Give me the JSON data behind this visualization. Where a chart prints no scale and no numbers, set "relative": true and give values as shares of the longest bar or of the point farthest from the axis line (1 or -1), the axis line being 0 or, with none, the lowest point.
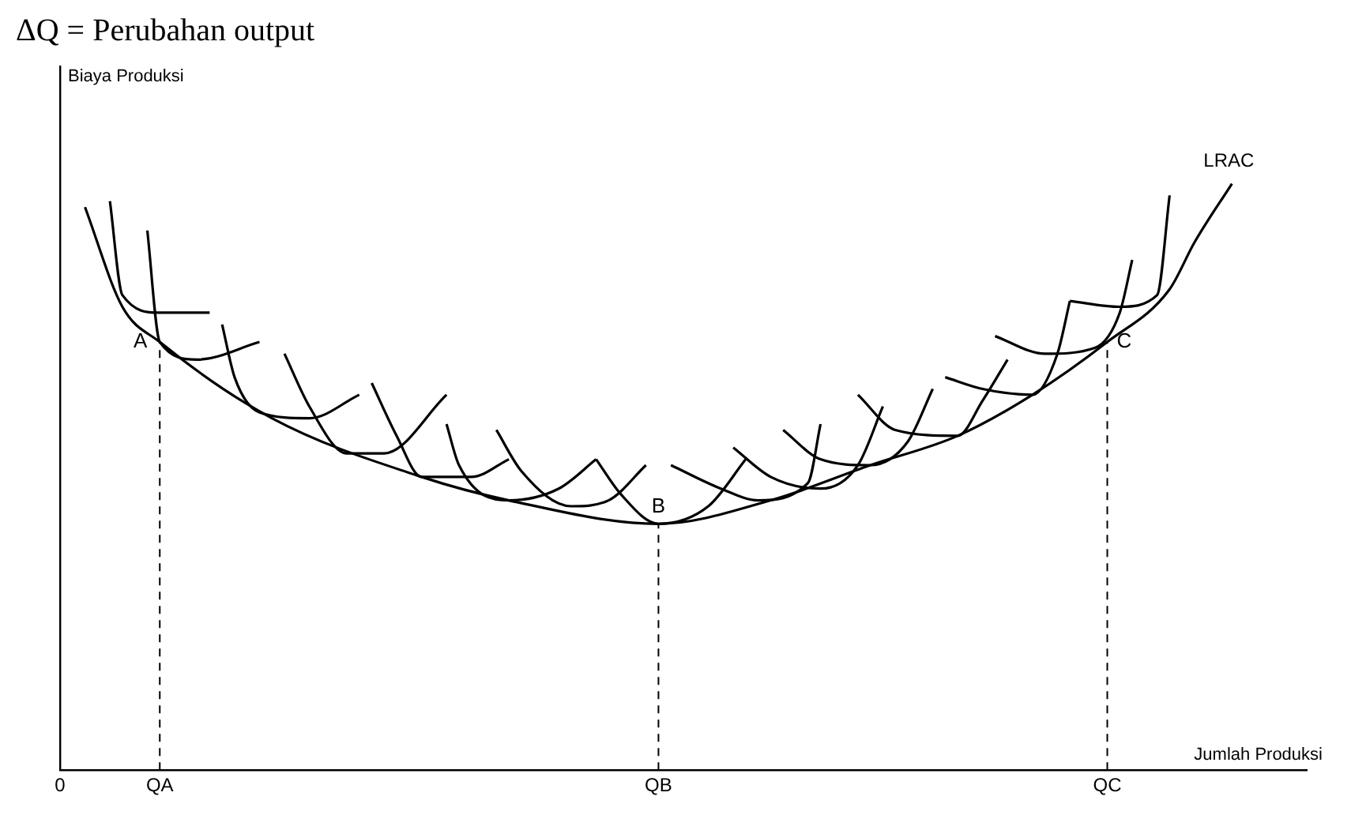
{
  "chart_data": {
    "type": "line",
    "relative": true,
    "xlabel": "Jumlah Produksi",
    "categories": [
      "0",
      null,
      null,
      null,
      null,
      null,
      null,
      null,
      "QA",
      null,
      null,
      null,
      null,
      null,
      null,
      null,
      null,
      null,
      null,
      null,
      null,
      null,
      null,
      null,
      null,
      null,
      null,
      null,
      null,
      null,
      null,
      null,
      null,
      null,
      null,
      null,
      null,
      null,
      null,
      null,
      null,
      null,
      null,
      null,
      null,
      null,
      null,
      null,
      "QB",
      null,
      null,
      null,
      null,
      null,
      null,
      null,
      null,
      null,
      null,
      null,
      null,
      null,
      null,
      null,
      null,
      null,
      null,
      null,
      null,
      null,
      null,
      null,
      null,
      null,
      null,
      null,
      null,
      null,
      null,
      null,
      null,
      null,
      null,
      null,
      "QC",
      null,
      null,
      null,
      null,
      null,
      null,
      null,
      null,
      null,
      null,
      null,
      null,
      null,
      null,
      null,
      null
    ],
    "grid": false,
    "legend": false,
    "marker": "none",
    "line_style": "solid",
    "annotations": [
      "ΔQ = Perubahan output",
      "Biaya Produksi",
      {
        "text": "A",
        "x": "QA",
        "y": 0.73
      },
      {
        "text": "B",
        "x": "QB",
        "y": 0.42
      },
      {
        "text": "C",
        "x": "QC",
        "y": 0.73
      }
    ],
    "ref_lines": [
      {
        "axis": "x",
        "value": "QA",
        "color": "#000000",
        "line_style": "dashed"
      },
      {
        "axis": "x",
        "value": "QB",
        "color": "#000000",
        "line_style": "dashed"
      },
      {
        "axis": "x",
        "value": "QC",
        "color": "#000000",
        "line_style": "dashed"
      }
    ],
    "series": [
      {
        "name": "LRAC",
        "color": "#000000",
        "values": [
          null,
          null,
          0.96,
          null,
          null,
          0.79,
          null,
          null,
          0.73,
          null,
          null,
          null,
          null,
          null,
          null,
          null,
          null,
          0.6,
          null,
          null,
          null,
          null,
          null,
          null,
          null,
          null,
          null,
          null,
          null,
          0.5,
          null,
          null,
          null,
          null,
          null,
          null,
          0.46,
          null,
          null,
          null,
          null,
          null,
          null,
          null,
          null,
          null,
          null,
          null,
          0.42,
          null,
          null,
          null,
          null,
          null,
          null,
          null,
          null,
          0.46,
          null,
          null,
          null,
          null,
          null,
          null,
          null,
          0.52,
          null,
          null,
          null,
          null,
          null,
          null,
          0.57,
          null,
          null,
          null,
          null,
          null,
          0.64,
          null,
          null,
          null,
          null,
          null,
          0.73,
          null,
          null,
          null,
          null,
          0.82,
          null,
          0.9,
          null,
          null,
          1.0,
          null,
          null,
          null,
          null,
          null,
          null
        ]
      },
      {
        "color": "#000000",
        "values": [
          null,
          null,
          null,
          null,
          0.97,
          0.81,
          null,
          null,
          0.78,
          null,
          null,
          null,
          0.78,
          null,
          null,
          null,
          null,
          null,
          null,
          null,
          null,
          null,
          null,
          null,
          null,
          null,
          null,
          null,
          null,
          null,
          null,
          null,
          null,
          null,
          null,
          null,
          null,
          null,
          null,
          null,
          null,
          null,
          null,
          null,
          null,
          null,
          null,
          null,
          null,
          null,
          null,
          null,
          null,
          null,
          null,
          null,
          null,
          null,
          null,
          null,
          null,
          null,
          null,
          null,
          null,
          null,
          null,
          null,
          null,
          null,
          null,
          null,
          null,
          null,
          null,
          null,
          null,
          null,
          null,
          null,
          null,
          null,
          null,
          null,
          null,
          null,
          null,
          null,
          null,
          null,
          null,
          null,
          null,
          null,
          null,
          null,
          null,
          null,
          null,
          null,
          null
        ]
      },
      {
        "color": "#000000",
        "values": [
          null,
          null,
          null,
          null,
          null,
          null,
          null,
          0.92,
          0.73,
          null,
          null,
          0.7,
          null,
          null,
          null,
          null,
          0.73,
          null,
          null,
          null,
          null,
          null,
          null,
          null,
          null,
          null,
          null,
          null,
          null,
          null,
          null,
          null,
          null,
          null,
          null,
          null,
          null,
          null,
          null,
          null,
          null,
          null,
          null,
          null,
          null,
          null,
          null,
          null,
          null,
          null,
          null,
          null,
          null,
          null,
          null,
          null,
          null,
          null,
          null,
          null,
          null,
          null,
          null,
          null,
          null,
          null,
          null,
          null,
          null,
          null,
          null,
          null,
          null,
          null,
          null,
          null,
          null,
          null,
          null,
          null,
          null,
          null,
          null,
          null,
          null,
          null,
          null,
          null,
          null,
          null,
          null,
          null,
          null,
          null,
          null,
          null,
          null,
          null,
          null,
          null,
          null
        ]
      },
      {
        "color": "#000000",
        "values": [
          null,
          null,
          null,
          null,
          null,
          null,
          null,
          null,
          null,
          null,
          null,
          null,
          null,
          0.76,
          0.67,
          null,
          0.61,
          null,
          null,
          null,
          0.6,
          null,
          null,
          null,
          0.64,
          null,
          null,
          null,
          null,
          null,
          null,
          null,
          null,
          null,
          null,
          null,
          null,
          null,
          null,
          null,
          null,
          null,
          null,
          null,
          null,
          null,
          null,
          null,
          null,
          null,
          null,
          null,
          null,
          null,
          null,
          null,
          null,
          null,
          null,
          null,
          null,
          null,
          null,
          null,
          null,
          null,
          null,
          null,
          null,
          null,
          null,
          null,
          null,
          null,
          null,
          null,
          null,
          null,
          null,
          null,
          null,
          null,
          null,
          null,
          null,
          null,
          null,
          null,
          null,
          null,
          null,
          null,
          null,
          null,
          null,
          null,
          null,
          null,
          null,
          null,
          null
        ]
      },
      {
        "color": "#000000",
        "values": [
          null,
          null,
          null,
          null,
          null,
          null,
          null,
          null,
          null,
          null,
          null,
          null,
          null,
          null,
          null,
          null,
          null,
          null,
          0.71,
          null,
          0.62,
          null,
          null,
          0.54,
          null,
          null,
          0.54,
          null,
          null,
          null,
          null,
          0.64,
          null,
          null,
          null,
          null,
          null,
          null,
          null,
          null,
          null,
          null,
          null,
          null,
          null,
          null,
          null,
          null,
          null,
          null,
          null,
          null,
          null,
          null,
          null,
          null,
          null,
          null,
          null,
          null,
          null,
          null,
          null,
          null,
          null,
          null,
          null,
          null,
          null,
          null,
          null,
          null,
          null,
          null,
          null,
          null,
          null,
          null,
          null,
          null,
          null,
          null,
          null,
          null,
          null,
          null,
          null,
          null,
          null,
          null,
          null,
          null,
          null,
          null,
          null,
          null,
          null,
          null,
          null,
          null,
          null
        ]
      },
      {
        "color": "#000000",
        "values": [
          null,
          null,
          null,
          null,
          null,
          null,
          null,
          null,
          null,
          null,
          null,
          null,
          null,
          null,
          null,
          null,
          null,
          null,
          null,
          null,
          null,
          null,
          null,
          null,
          null,
          0.66,
          null,
          0.57,
          null,
          0.5,
          null,
          null,
          null,
          0.5,
          null,
          null,
          0.53,
          null,
          null,
          null,
          null,
          null,
          null,
          null,
          null,
          null,
          null,
          null,
          null,
          null,
          null,
          null,
          null,
          null,
          null,
          null,
          null,
          null,
          null,
          null,
          null,
          null,
          null,
          null,
          null,
          null,
          null,
          null,
          null,
          null,
          null,
          null,
          null,
          null,
          null,
          null,
          null,
          null,
          null,
          null,
          null,
          null,
          null,
          null,
          null,
          null,
          null,
          null,
          null,
          null,
          null,
          null,
          null,
          null,
          null,
          null,
          null,
          null,
          null,
          null,
          null
        ]
      },
      {
        "color": "#000000",
        "values": [
          null,
          null,
          null,
          null,
          null,
          null,
          null,
          null,
          null,
          null,
          null,
          null,
          null,
          null,
          null,
          null,
          null,
          null,
          null,
          null,
          null,
          null,
          null,
          null,
          null,
          null,
          null,
          null,
          null,
          null,
          null,
          0.59,
          0.52,
          null,
          null,
          null,
          0.46,
          null,
          null,
          null,
          0.48,
          null,
          null,
          0.53,
          null,
          null,
          null,
          null,
          null,
          null,
          null,
          null,
          null,
          null,
          null,
          null,
          null,
          null,
          null,
          null,
          null,
          null,
          null,
          null,
          null,
          null,
          null,
          null,
          null,
          null,
          null,
          null,
          null,
          null,
          null,
          null,
          null,
          null,
          null,
          null,
          null,
          null,
          null,
          null,
          null,
          null,
          null,
          null,
          null,
          null,
          null,
          null,
          null,
          null,
          null,
          null,
          null,
          null,
          null,
          null,
          null
        ]
      },
      {
        "color": "#000000",
        "values": [
          null,
          null,
          null,
          null,
          null,
          null,
          null,
          null,
          null,
          null,
          null,
          null,
          null,
          null,
          null,
          null,
          null,
          null,
          null,
          null,
          null,
          null,
          null,
          null,
          null,
          null,
          null,
          null,
          null,
          null,
          null,
          null,
          null,
          null,
          null,
          0.58,
          null,
          0.51,
          null,
          null,
          null,
          0.45,
          null,
          null,
          0.46,
          null,
          null,
          0.52,
          null,
          null,
          null,
          null,
          null,
          null,
          null,
          null,
          null,
          null,
          null,
          null,
          null,
          null,
          null,
          null,
          null,
          null,
          null,
          null,
          null,
          null,
          null,
          null,
          null,
          null,
          null,
          null,
          null,
          null,
          null,
          null,
          null,
          null,
          null,
          null,
          null,
          null,
          null,
          null,
          null,
          null,
          null,
          null,
          null,
          null,
          null,
          null,
          null,
          null,
          null,
          null,
          null
        ]
      },
      {
        "color": "#000000",
        "values": [
          null,
          null,
          null,
          null,
          null,
          null,
          null,
          null,
          null,
          null,
          null,
          null,
          null,
          null,
          null,
          null,
          null,
          null,
          null,
          null,
          null,
          null,
          null,
          null,
          null,
          null,
          null,
          null,
          null,
          null,
          null,
          null,
          null,
          null,
          null,
          null,
          null,
          null,
          null,
          null,
          null,
          null,
          null,
          0.53,
          null,
          0.47,
          null,
          null,
          0.42,
          null,
          null,
          null,
          0.45,
          null,
          null,
          0.53,
          null,
          null,
          null,
          null,
          null,
          null,
          null,
          null,
          null,
          null,
          null,
          null,
          null,
          null,
          null,
          null,
          null,
          null,
          null,
          null,
          null,
          null,
          null,
          null,
          null,
          null,
          null,
          null,
          null,
          null,
          null,
          null,
          null,
          null,
          null,
          null,
          null,
          null,
          null,
          null,
          null,
          null,
          null,
          null,
          null
        ]
      },
      {
        "color": "#000000",
        "values": [
          null,
          null,
          null,
          null,
          null,
          null,
          null,
          null,
          null,
          null,
          null,
          null,
          null,
          null,
          null,
          null,
          null,
          null,
          null,
          null,
          null,
          null,
          null,
          null,
          null,
          null,
          null,
          null,
          null,
          null,
          null,
          null,
          null,
          null,
          null,
          null,
          null,
          null,
          null,
          null,
          null,
          null,
          null,
          null,
          null,
          null,
          null,
          null,
          null,
          0.52,
          null,
          null,
          null,
          0.48,
          null,
          null,
          0.46,
          null,
          null,
          null,
          0.49,
          0.59,
          null,
          null,
          null,
          null,
          null,
          null,
          null,
          null,
          null,
          null,
          null,
          null,
          null,
          null,
          null,
          null,
          null,
          null,
          null,
          null,
          null,
          null,
          null,
          null,
          null,
          null,
          null,
          null,
          null,
          null,
          null,
          null,
          null,
          null,
          null,
          null,
          null,
          null,
          null
        ]
      },
      {
        "color": "#000000",
        "values": [
          null,
          null,
          null,
          null,
          null,
          null,
          null,
          null,
          null,
          null,
          null,
          null,
          null,
          null,
          null,
          null,
          null,
          null,
          null,
          null,
          null,
          null,
          null,
          null,
          null,
          null,
          null,
          null,
          null,
          null,
          null,
          null,
          null,
          null,
          null,
          null,
          null,
          null,
          null,
          null,
          null,
          null,
          null,
          null,
          null,
          null,
          null,
          null,
          null,
          null,
          null,
          null,
          null,
          null,
          0.55,
          null,
          null,
          0.5,
          null,
          null,
          null,
          0.48,
          null,
          null,
          0.52,
          null,
          0.62,
          null,
          null,
          null,
          null,
          null,
          null,
          null,
          null,
          null,
          null,
          null,
          null,
          null,
          null,
          null,
          null,
          null,
          null,
          null,
          null,
          null,
          null,
          null,
          null,
          null,
          null,
          null,
          null,
          null,
          null,
          null,
          null,
          null,
          null
        ]
      },
      {
        "color": "#000000",
        "values": [
          null,
          null,
          null,
          null,
          null,
          null,
          null,
          null,
          null,
          null,
          null,
          null,
          null,
          null,
          null,
          null,
          null,
          null,
          null,
          null,
          null,
          null,
          null,
          null,
          null,
          null,
          null,
          null,
          null,
          null,
          null,
          null,
          null,
          null,
          null,
          null,
          null,
          null,
          null,
          null,
          null,
          null,
          null,
          null,
          null,
          null,
          null,
          null,
          null,
          null,
          null,
          null,
          null,
          null,
          null,
          null,
          null,
          null,
          0.58,
          null,
          null,
          0.53,
          null,
          null,
          null,
          0.52,
          null,
          null,
          0.56,
          null,
          0.65,
          null,
          null,
          null,
          null,
          null,
          null,
          null,
          null,
          null,
          null,
          null,
          null,
          null,
          null,
          null,
          null,
          null,
          null,
          null,
          null,
          null,
          null,
          null,
          null,
          null,
          null,
          null,
          null,
          null,
          null
        ]
      },
      {
        "color": "#000000",
        "values": [
          null,
          null,
          null,
          null,
          null,
          null,
          null,
          null,
          null,
          null,
          null,
          null,
          null,
          null,
          null,
          null,
          null,
          null,
          null,
          null,
          null,
          null,
          null,
          null,
          null,
          null,
          null,
          null,
          null,
          null,
          null,
          null,
          null,
          null,
          null,
          null,
          null,
          null,
          null,
          null,
          null,
          null,
          null,
          null,
          null,
          null,
          null,
          null,
          null,
          null,
          null,
          null,
          null,
          null,
          null,
          null,
          null,
          null,
          null,
          null,
          null,
          null,
          null,
          null,
          0.64,
          null,
          null,
          0.58,
          null,
          null,
          null,
          null,
          0.57,
          null,
          0.63,
          null,
          0.7,
          null,
          null,
          null,
          null,
          null,
          null,
          null,
          null,
          null,
          null,
          null,
          null,
          null,
          null,
          null,
          null,
          null,
          null,
          null,
          null,
          null,
          null,
          null,
          null
        ]
      },
      {
        "color": "#000000",
        "values": [
          null,
          null,
          null,
          null,
          null,
          null,
          null,
          null,
          null,
          null,
          null,
          null,
          null,
          null,
          null,
          null,
          null,
          null,
          null,
          null,
          null,
          null,
          null,
          null,
          null,
          null,
          null,
          null,
          null,
          null,
          null,
          null,
          null,
          null,
          null,
          null,
          null,
          null,
          null,
          null,
          null,
          null,
          null,
          null,
          null,
          null,
          null,
          null,
          null,
          null,
          null,
          null,
          null,
          null,
          null,
          null,
          null,
          null,
          null,
          null,
          null,
          null,
          null,
          null,
          null,
          null,
          null,
          null,
          null,
          null,
          null,
          0.67,
          null,
          null,
          0.65,
          null,
          null,
          null,
          0.64,
          null,
          0.71,
          0.8,
          null,
          null,
          null,
          null,
          null,
          null,
          null,
          null,
          null,
          null,
          null,
          null,
          null,
          null,
          null,
          null,
          null,
          null,
          null
        ]
      },
      {
        "color": "#000000",
        "values": [
          null,
          null,
          null,
          null,
          null,
          null,
          null,
          null,
          null,
          null,
          null,
          null,
          null,
          null,
          null,
          null,
          null,
          null,
          null,
          null,
          null,
          null,
          null,
          null,
          null,
          null,
          null,
          null,
          null,
          null,
          null,
          null,
          null,
          null,
          null,
          null,
          null,
          null,
          null,
          null,
          null,
          null,
          null,
          null,
          null,
          null,
          null,
          null,
          null,
          null,
          null,
          null,
          null,
          null,
          null,
          null,
          null,
          null,
          null,
          null,
          null,
          null,
          null,
          null,
          null,
          null,
          null,
          null,
          null,
          null,
          null,
          null,
          null,
          null,
          null,
          0.74,
          null,
          null,
          null,
          0.71,
          null,
          null,
          null,
          0.72,
          null,
          0.78,
          0.87,
          null,
          null,
          null,
          null,
          null,
          null,
          null,
          null,
          null,
          null,
          null,
          null,
          null,
          null
        ]
      },
      {
        "color": "#000000",
        "values": [
          null,
          null,
          null,
          null,
          null,
          null,
          null,
          null,
          null,
          null,
          null,
          null,
          null,
          null,
          null,
          null,
          null,
          null,
          null,
          null,
          null,
          null,
          null,
          null,
          null,
          null,
          null,
          null,
          null,
          null,
          null,
          null,
          null,
          null,
          null,
          null,
          null,
          null,
          null,
          null,
          null,
          null,
          null,
          null,
          null,
          null,
          null,
          null,
          null,
          null,
          null,
          null,
          null,
          null,
          null,
          null,
          null,
          null,
          null,
          null,
          null,
          null,
          null,
          null,
          null,
          null,
          null,
          null,
          null,
          null,
          null,
          null,
          null,
          null,
          null,
          null,
          null,
          null,
          null,
          null,
          null,
          0.8,
          null,
          null,
          null,
          0.79,
          null,
          null,
          0.81,
          0.98,
          null,
          null,
          null,
          null,
          null,
          null,
          null,
          null,
          null,
          null,
          null
        ]
      }
    ]
  }
}
